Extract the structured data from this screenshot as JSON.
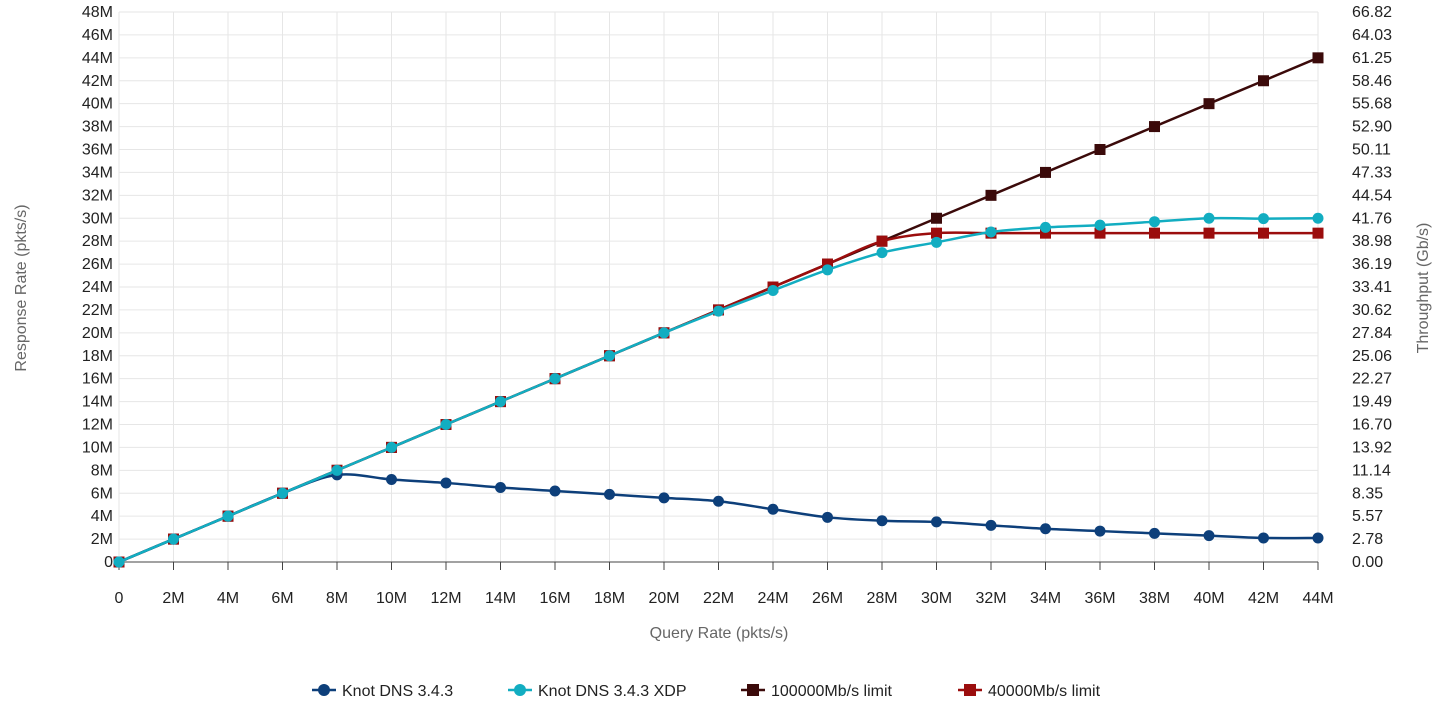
{
  "chart_data": {
    "type": "line",
    "xlabel": "Query Rate (pkts/s)",
    "ylabel": "Response Rate (pkts/s)",
    "y2label": "Throughput (Gb/s)",
    "xlim": [
      0,
      44
    ],
    "ylim": [
      0,
      48
    ],
    "x_unit": "M",
    "x_ticks": [
      "0",
      "2M",
      "4M",
      "6M",
      "8M",
      "10M",
      "12M",
      "14M",
      "16M",
      "18M",
      "20M",
      "22M",
      "24M",
      "26M",
      "28M",
      "30M",
      "32M",
      "34M",
      "36M",
      "38M",
      "40M",
      "42M",
      "44M"
    ],
    "y_ticks": [
      "0",
      "2M",
      "4M",
      "6M",
      "8M",
      "10M",
      "12M",
      "14M",
      "16M",
      "18M",
      "20M",
      "22M",
      "24M",
      "26M",
      "28M",
      "30M",
      "32M",
      "34M",
      "36M",
      "38M",
      "40M",
      "42M",
      "44M",
      "46M",
      "48M"
    ],
    "y2_ticks": [
      "0.00",
      "2.78",
      "5.57",
      "8.35",
      "11.14",
      "13.92",
      "16.70",
      "19.49",
      "22.27",
      "25.06",
      "27.84",
      "30.62",
      "33.41",
      "36.19",
      "38.98",
      "41.76",
      "44.54",
      "47.33",
      "50.11",
      "52.90",
      "55.68",
      "58.46",
      "61.25",
      "64.03",
      "66.82"
    ],
    "grid": true,
    "legend_position": "bottom",
    "x": [
      0,
      2,
      4,
      6,
      8,
      10,
      12,
      14,
      16,
      18,
      20,
      22,
      24,
      26,
      28,
      30,
      32,
      34,
      36,
      38,
      40,
      42,
      44
    ],
    "series": [
      {
        "name": "Knot DNS 3.4.3",
        "color": "#0d3f7a",
        "marker": "circle",
        "values": [
          0,
          2,
          4,
          6,
          7.6,
          7.2,
          6.9,
          6.5,
          6.2,
          5.9,
          5.6,
          5.3,
          4.6,
          3.9,
          3.6,
          3.5,
          3.2,
          2.9,
          2.7,
          2.5,
          2.3,
          2.1,
          2.1
        ]
      },
      {
        "name": "Knot DNS 3.4.3 XDP",
        "color": "#12adc1",
        "marker": "circle",
        "values": [
          0,
          2,
          4,
          6,
          8,
          10,
          12,
          14,
          16,
          18,
          20,
          21.9,
          23.7,
          25.5,
          27,
          27.9,
          28.8,
          29.2,
          29.4,
          29.7,
          30,
          29.97,
          30
        ]
      },
      {
        "name": "100000Mb/s limit",
        "color": "#3b0a0a",
        "marker": "square",
        "values": [
          0,
          2,
          4,
          6,
          8,
          10,
          12,
          14,
          16,
          18,
          20,
          22,
          24,
          26,
          28,
          30,
          32,
          34,
          36,
          38,
          40,
          42,
          44
        ]
      },
      {
        "name": "40000Mb/s limit",
        "color": "#9b0d0d",
        "marker": "square",
        "values": [
          0,
          2,
          4,
          6,
          8,
          10,
          12,
          14,
          16,
          18,
          20,
          22,
          24,
          26,
          28,
          28.7,
          28.7,
          28.7,
          28.7,
          28.7,
          28.7,
          28.7,
          28.7
        ]
      }
    ]
  }
}
